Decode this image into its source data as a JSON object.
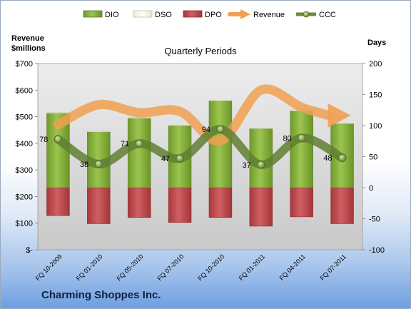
{
  "company_name": "Charming Shoppes Inc.",
  "chart_data": {
    "type": "bar",
    "title": "Quarterly Periods",
    "ylabel_left": "Revenue\n$millions",
    "ylabel_right": "Days",
    "left_axis": {
      "min": 0,
      "max": 700,
      "step": 100,
      "tick_labels": [
        "$-",
        "$100",
        "$200",
        "$300",
        "$400",
        "$500",
        "$600",
        "$700"
      ]
    },
    "right_axis": {
      "min": -100,
      "max": 200,
      "step": 50,
      "tick_labels": [
        "-100",
        "-50",
        "0",
        "50",
        "100",
        "150",
        "200"
      ]
    },
    "categories": [
      "FQ 10-2009",
      "FQ 01-2010",
      "FQ 05-2010",
      "FQ 07-2010",
      "FQ 10-2010",
      "FQ 01-2011",
      "FQ 04-2011",
      "FQ 07-2011"
    ],
    "legend": {
      "placement": "top",
      "entries": [
        "DIO",
        "DSO",
        "DPO",
        "Revenue",
        "CCC"
      ]
    },
    "grid": false,
    "series": [
      {
        "name": "DIO",
        "axis": "right",
        "color": "#8ab43e",
        "values": [
          120,
          90,
          112,
          100,
          140,
          95,
          124,
          103
        ]
      },
      {
        "name": "DSO",
        "axis": "right",
        "color": "#f2f7e4",
        "values": [
          1,
          1,
          1,
          1,
          1,
          1,
          2,
          1
        ]
      },
      {
        "name": "DPO",
        "axis": "right",
        "color": "#c0484d",
        "values": [
          -45,
          -58,
          -48,
          -56,
          -48,
          -62,
          -47,
          -58
        ]
      },
      {
        "name": "Revenue",
        "axis": "left",
        "color": "#f0a050",
        "values": [
          470,
          545,
          515,
          520,
          410,
          600,
          535,
          505
        ]
      },
      {
        "name": "CCC",
        "axis": "right",
        "color": "#6b8c3a",
        "values": [
          78,
          38,
          71,
          47,
          94,
          37,
          80,
          48
        ],
        "data_labels": [
          "78",
          "38",
          "71",
          "47",
          "94",
          "37",
          "80",
          "48"
        ]
      }
    ]
  }
}
